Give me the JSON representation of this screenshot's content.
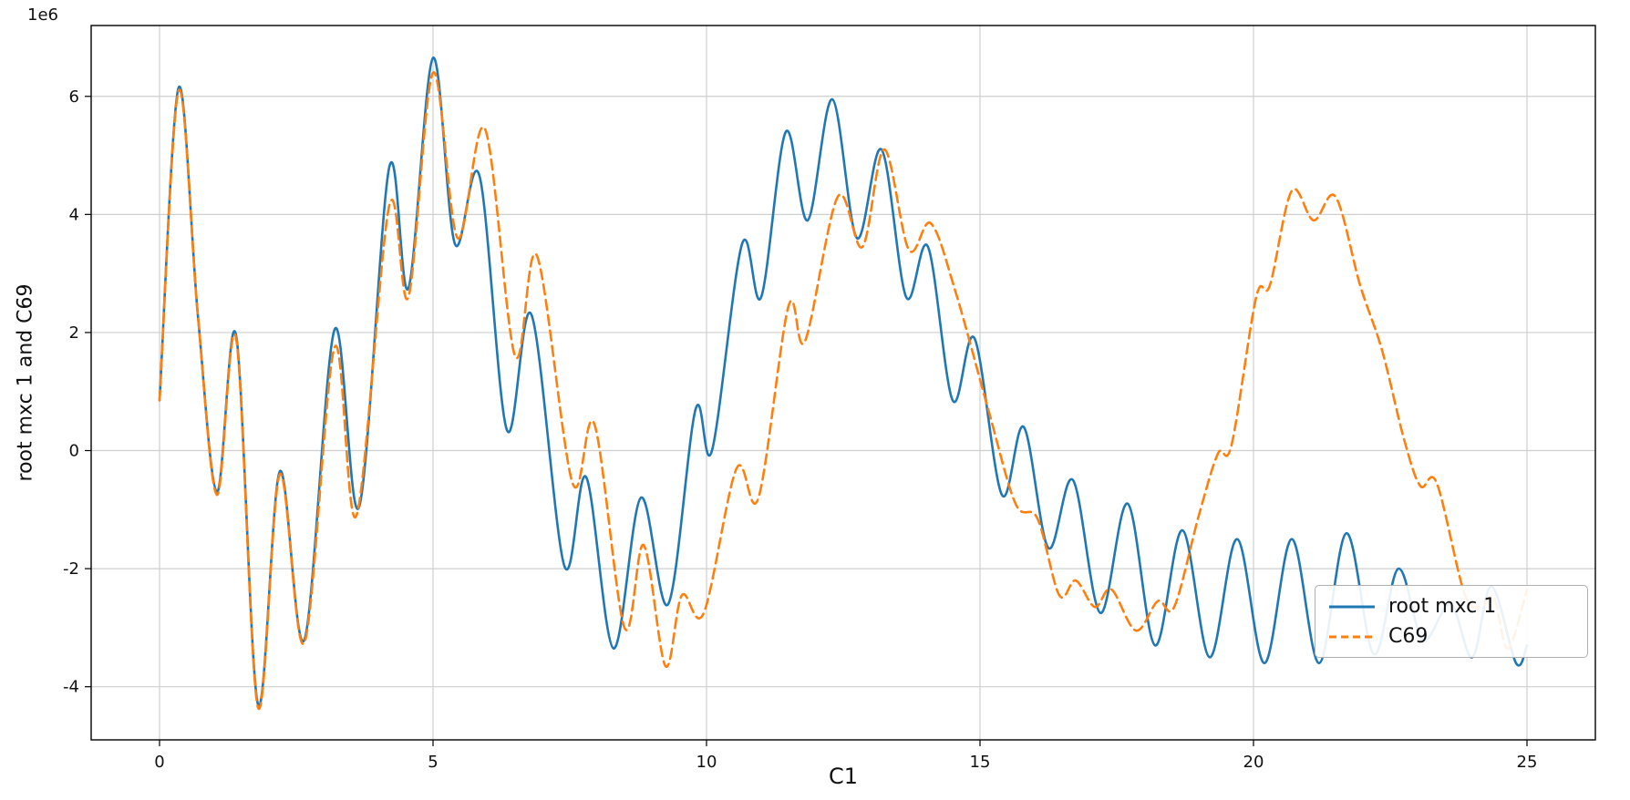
{
  "chart_data": {
    "type": "line",
    "title": "",
    "xlabel": "C1",
    "ylabel": "root mxc 1 and C69",
    "y_offset_text": "1e6",
    "y_unit": "1e6",
    "xlim": [
      -1.25,
      26.25
    ],
    "ylim": [
      -4.9,
      7.2
    ],
    "x_ticks": [
      0,
      5,
      10,
      15,
      20,
      25
    ],
    "y_ticks": [
      -4,
      -2,
      0,
      2,
      4,
      6
    ],
    "grid": true,
    "grid_color": "#cfcfcf",
    "frame_color": "#000000",
    "background": "#ffffff",
    "legend_position": "lower right",
    "series": [
      {
        "name": "root mxc 1",
        "color": "#1f77b4",
        "style": "solid",
        "points": [
          [
            0.0,
            0.85
          ],
          [
            0.35,
            6.15
          ],
          [
            0.7,
            2.3
          ],
          [
            1.05,
            -0.7
          ],
          [
            1.4,
            1.95
          ],
          [
            1.8,
            -4.3
          ],
          [
            2.2,
            -0.35
          ],
          [
            2.65,
            -3.2
          ],
          [
            3.2,
            2.05
          ],
          [
            3.65,
            -0.95
          ],
          [
            4.2,
            4.8
          ],
          [
            4.55,
            2.75
          ],
          [
            5.0,
            6.65
          ],
          [
            5.4,
            3.5
          ],
          [
            5.85,
            4.65
          ],
          [
            6.35,
            0.35
          ],
          [
            6.8,
            2.3
          ],
          [
            7.4,
            -1.95
          ],
          [
            7.8,
            -0.45
          ],
          [
            8.3,
            -3.35
          ],
          [
            8.8,
            -0.8
          ],
          [
            9.3,
            -2.6
          ],
          [
            9.8,
            0.7
          ],
          [
            10.1,
            0.0
          ],
          [
            10.65,
            3.5
          ],
          [
            11.0,
            2.6
          ],
          [
            11.45,
            5.4
          ],
          [
            11.85,
            3.9
          ],
          [
            12.3,
            5.95
          ],
          [
            12.75,
            3.6
          ],
          [
            13.2,
            5.1
          ],
          [
            13.65,
            2.6
          ],
          [
            14.05,
            3.45
          ],
          [
            14.5,
            0.85
          ],
          [
            14.9,
            1.9
          ],
          [
            15.4,
            -0.75
          ],
          [
            15.8,
            0.4
          ],
          [
            16.25,
            -1.65
          ],
          [
            16.7,
            -0.5
          ],
          [
            17.2,
            -2.75
          ],
          [
            17.7,
            -0.9
          ],
          [
            18.2,
            -3.3
          ],
          [
            18.7,
            -1.35
          ],
          [
            19.2,
            -3.5
          ],
          [
            19.7,
            -1.5
          ],
          [
            20.2,
            -3.6
          ],
          [
            20.7,
            -1.5
          ],
          [
            21.2,
            -3.6
          ],
          [
            21.7,
            -1.4
          ],
          [
            22.2,
            -3.45
          ],
          [
            22.65,
            -2.0
          ],
          [
            23.1,
            -3.2
          ],
          [
            23.6,
            -2.6
          ],
          [
            24.0,
            -3.5
          ],
          [
            24.35,
            -2.3
          ],
          [
            24.8,
            -3.6
          ],
          [
            25.0,
            -3.3
          ]
        ]
      },
      {
        "name": "C69",
        "color": "#ff7f0e",
        "style": "dashed",
        "points": [
          [
            0.0,
            0.85
          ],
          [
            0.35,
            6.1
          ],
          [
            0.7,
            2.3
          ],
          [
            1.05,
            -0.75
          ],
          [
            1.4,
            1.9
          ],
          [
            1.8,
            -4.35
          ],
          [
            2.2,
            -0.4
          ],
          [
            2.65,
            -3.25
          ],
          [
            3.2,
            1.75
          ],
          [
            3.6,
            -1.1
          ],
          [
            4.2,
            4.15
          ],
          [
            4.55,
            2.6
          ],
          [
            5.0,
            6.4
          ],
          [
            5.45,
            3.6
          ],
          [
            5.95,
            5.45
          ],
          [
            6.5,
            1.6
          ],
          [
            6.9,
            3.3
          ],
          [
            7.55,
            -0.55
          ],
          [
            7.95,
            0.45
          ],
          [
            8.5,
            -3.0
          ],
          [
            8.85,
            -1.6
          ],
          [
            9.25,
            -3.65
          ],
          [
            9.55,
            -2.45
          ],
          [
            9.95,
            -2.75
          ],
          [
            10.55,
            -0.3
          ],
          [
            10.95,
            -0.8
          ],
          [
            11.5,
            2.45
          ],
          [
            11.8,
            1.85
          ],
          [
            12.4,
            4.3
          ],
          [
            12.85,
            3.45
          ],
          [
            13.25,
            5.1
          ],
          [
            13.7,
            3.4
          ],
          [
            14.1,
            3.85
          ],
          [
            14.55,
            2.7
          ],
          [
            15.15,
            0.7
          ],
          [
            15.65,
            -0.9
          ],
          [
            16.05,
            -1.15
          ],
          [
            16.45,
            -2.45
          ],
          [
            16.75,
            -2.2
          ],
          [
            17.1,
            -2.65
          ],
          [
            17.4,
            -2.35
          ],
          [
            17.85,
            -3.05
          ],
          [
            18.25,
            -2.55
          ],
          [
            18.55,
            -2.65
          ],
          [
            19.0,
            -1.1
          ],
          [
            19.35,
            -0.05
          ],
          [
            19.6,
            0.1
          ],
          [
            20.05,
            2.6
          ],
          [
            20.3,
            2.8
          ],
          [
            20.7,
            4.4
          ],
          [
            21.1,
            3.9
          ],
          [
            21.5,
            4.3
          ],
          [
            21.95,
            2.8
          ],
          [
            22.35,
            1.7
          ],
          [
            22.75,
            0.2
          ],
          [
            23.05,
            -0.6
          ],
          [
            23.35,
            -0.55
          ],
          [
            23.85,
            -2.4
          ],
          [
            24.15,
            -2.65
          ],
          [
            24.4,
            -2.5
          ],
          [
            24.65,
            -3.35
          ],
          [
            25.0,
            -2.35
          ]
        ]
      }
    ]
  }
}
